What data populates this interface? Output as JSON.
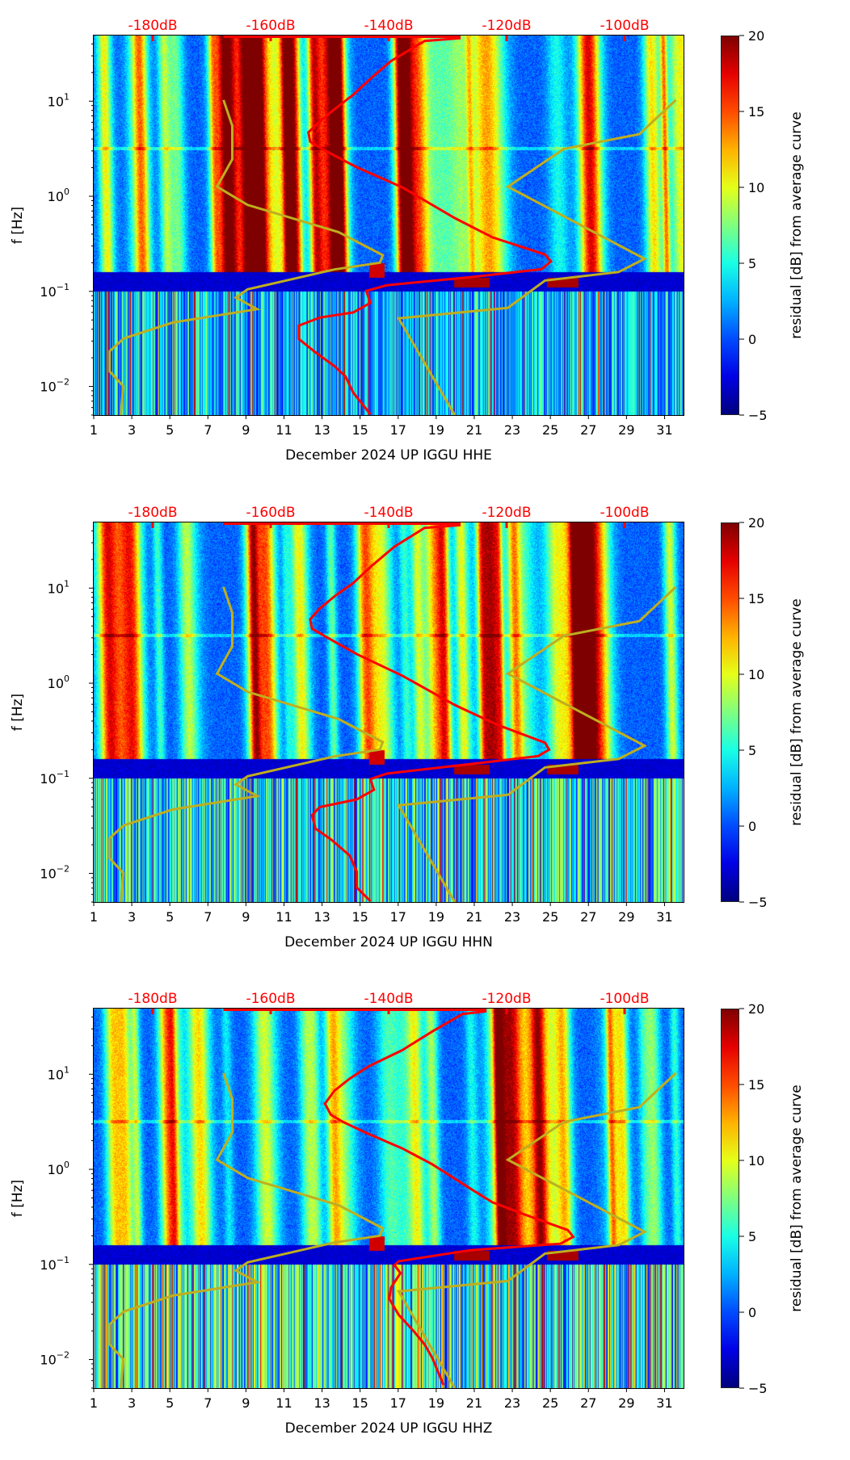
{
  "figure": {
    "panels": [
      {
        "id": "hhe",
        "xlabel": "December 2024 UP IGGU  HHE"
      },
      {
        "id": "hhn",
        "xlabel": "December 2024 UP IGGU  HHN"
      },
      {
        "id": "hhz",
        "xlabel": "December 2024 UP IGGU  HHZ"
      }
    ],
    "ylabel": "f [Hz]",
    "colorbar_label": "residual [dB] from average curve",
    "colorbar_ticks": [
      "20",
      "15",
      "10",
      "5",
      "0",
      "−5"
    ],
    "x_tick_labels": [
      "1",
      "3",
      "5",
      "7",
      "9",
      "11",
      "13",
      "15",
      "17",
      "19",
      "21",
      "23",
      "25",
      "27",
      "29",
      "31"
    ],
    "y_tick_labels": [
      {
        "base": "10",
        "exp": "1"
      },
      {
        "base": "10",
        "exp": "0"
      },
      {
        "base": "10",
        "exp": "−1"
      },
      {
        "base": "10",
        "exp": "−2"
      }
    ],
    "top_tick_labels": [
      "-180dB",
      "-160dB",
      "-140dB",
      "-120dB",
      "-100dB"
    ]
  },
  "chart_data": [
    {
      "type": "heatmap",
      "title": "",
      "xlabel": "December 2024 UP IGGU  HHE",
      "ylabel": "f [Hz]",
      "x_range": [
        1,
        32
      ],
      "y_range": [
        0.005,
        49
      ],
      "y_scale": "log",
      "top_axis": {
        "label_unit": "dB",
        "range": [
          -190,
          -90
        ],
        "ticks": [
          -180,
          -160,
          -140,
          -120,
          -100
        ]
      },
      "colorbar": {
        "label": "residual [dB] from average curve",
        "range": [
          -5,
          20
        ],
        "ticks": [
          -5,
          0,
          5,
          10,
          15,
          20
        ],
        "colormap": "jet"
      },
      "series": [
        {
          "name": "PSD mode curve (red)",
          "color": "#ff0000",
          "axis": "top-dB",
          "points": [
            [
              -127.8,
              45.9
            ],
            [
              -133.9,
              43
            ],
            [
              -139.6,
              26.4
            ],
            [
              -142.8,
              17.9
            ],
            [
              -146.0,
              11.7
            ],
            [
              -149.2,
              8.2
            ],
            [
              -151.7,
              6.1
            ],
            [
              -153.6,
              4.7
            ],
            [
              -153.3,
              3.75
            ],
            [
              -151.1,
              3.09
            ],
            [
              -145.4,
              2.02
            ],
            [
              -137.7,
              1.24
            ],
            [
              -128.8,
              0.59
            ],
            [
              -122.4,
              0.37
            ],
            [
              -113.5,
              0.244
            ],
            [
              -112.5,
              0.207
            ],
            [
              -114.1,
              0.171
            ],
            [
              -126.2,
              0.141
            ],
            [
              -140.3,
              0.116
            ],
            [
              -143.8,
              0.101
            ],
            [
              -143.1,
              0.0757
            ],
            [
              -146.0,
              0.06
            ],
            [
              -151.7,
              0.053
            ],
            [
              -155.2,
              0.0436
            ],
            [
              -155.2,
              0.0315
            ],
            [
              -152.4,
              0.0228
            ],
            [
              -149.2,
              0.0164
            ],
            [
              -147.3,
              0.0127
            ],
            [
              -146.0,
              0.0086
            ],
            [
              -143.1,
              0.0051
            ]
          ]
        }
      ]
    },
    {
      "type": "heatmap",
      "title": "",
      "xlabel": "December 2024 UP IGGU  HHN",
      "ylabel": "f [Hz]",
      "x_range": [
        1,
        32
      ],
      "y_range": [
        0.005,
        49
      ],
      "y_scale": "log",
      "top_axis": {
        "label_unit": "dB",
        "range": [
          -190,
          -90
        ],
        "ticks": [
          -180,
          -160,
          -140,
          -120,
          -100
        ]
      },
      "colorbar": {
        "label": "residual [dB] from average curve",
        "range": [
          -5,
          20
        ],
        "ticks": [
          -5,
          0,
          5,
          10,
          15,
          20
        ],
        "colormap": "jet"
      },
      "series": [
        {
          "name": "PSD mode curve (red)",
          "color": "#ff0000",
          "axis": "top-dB",
          "points": [
            [
              -127.8,
              45.9
            ],
            [
              -133.9,
              43
            ],
            [
              -139.0,
              27.3
            ],
            [
              -142.8,
              17.3
            ],
            [
              -146.0,
              11.3
            ],
            [
              -148.9,
              8.45
            ],
            [
              -151.7,
              6.1
            ],
            [
              -153.3,
              4.7
            ],
            [
              -153.0,
              3.75
            ],
            [
              -151.1,
              3.19
            ],
            [
              -145.4,
              2.02
            ],
            [
              -137.7,
              1.2
            ],
            [
              -128.8,
              0.59
            ],
            [
              -121.8,
              0.37
            ],
            [
              -113.5,
              0.237
            ],
            [
              -112.8,
              0.2
            ],
            [
              -114.7,
              0.171
            ],
            [
              -126.2,
              0.141
            ],
            [
              -140.3,
              0.112
            ],
            [
              -143.1,
              0.098
            ],
            [
              -142.5,
              0.0757
            ],
            [
              -145.4,
              0.06
            ],
            [
              -151.7,
              0.0497
            ],
            [
              -153.0,
              0.0408
            ],
            [
              -152.4,
              0.0295
            ],
            [
              -149.8,
              0.0228
            ],
            [
              -146.6,
              0.0154
            ],
            [
              -145.4,
              0.0104
            ],
            [
              -145.4,
              0.0071
            ],
            [
              -143.1,
              0.0051
            ]
          ]
        }
      ]
    },
    {
      "type": "heatmap",
      "title": "",
      "xlabel": "December 2024 UP IGGU  HHZ",
      "ylabel": "f [Hz]",
      "x_range": [
        1,
        32
      ],
      "y_range": [
        0.005,
        49
      ],
      "y_scale": "log",
      "top_axis": {
        "label_unit": "dB",
        "range": [
          -190,
          -90
        ],
        "ticks": [
          -180,
          -160,
          -140,
          -120,
          -100
        ]
      },
      "colorbar": {
        "label": "residual [dB] from average curve",
        "range": [
          -5,
          20
        ],
        "ticks": [
          -5,
          0,
          5,
          10,
          15,
          20
        ],
        "colormap": "jet"
      },
      "series": [
        {
          "name": "PSD mode curve (red)",
          "color": "#ff0000",
          "axis": "top-dB",
          "points": [
            [
              -123.4,
              45.9
            ],
            [
              -127.5,
              43
            ],
            [
              -132.6,
              28.2
            ],
            [
              -137.7,
              17.9
            ],
            [
              -143.4,
              12.1
            ],
            [
              -146.6,
              9.0
            ],
            [
              -149.2,
              6.7
            ],
            [
              -150.8,
              4.9
            ],
            [
              -149.8,
              3.75
            ],
            [
              -147.9,
              3.19
            ],
            [
              -144.1,
              2.46
            ],
            [
              -137.7,
              1.66
            ],
            [
              -132.6,
              1.13
            ],
            [
              -126.2,
              0.63
            ],
            [
              -122.4,
              0.45
            ],
            [
              -116.7,
              0.33
            ],
            [
              -109.6,
              0.229
            ],
            [
              -108.7,
              0.195
            ],
            [
              -110.9,
              0.165
            ],
            [
              -126.2,
              0.141
            ],
            [
              -138.3,
              0.108
            ],
            [
              -139.0,
              0.098
            ],
            [
              -138.0,
              0.081
            ],
            [
              -139.6,
              0.057
            ],
            [
              -139.9,
              0.0436
            ],
            [
              -138.3,
              0.0295
            ],
            [
              -135.8,
              0.02
            ],
            [
              -133.9,
              0.0144
            ],
            [
              -132.6,
              0.0104
            ],
            [
              -130.7,
              0.0054
            ]
          ]
        }
      ]
    }
  ],
  "noise_models": {
    "color": "#bfae1f",
    "nlnm": {
      "name": "NLNM (low noise model)",
      "points": [
        [
          -168.0,
          10.3
        ],
        [
          -166.5,
          5.5
        ],
        [
          -166.5,
          2.45
        ],
        [
          -169.1,
          1.26
        ],
        [
          -163.9,
          0.81
        ],
        [
          -148.5,
          0.42
        ],
        [
          -141.0,
          0.24
        ],
        [
          -141.5,
          0.2
        ],
        [
          -149.2,
          0.17
        ],
        [
          -163.9,
          0.105
        ],
        [
          -165.9,
          0.086
        ],
        [
          -162.3,
          0.065
        ],
        [
          -176.6,
          0.047
        ],
        [
          -184.9,
          0.032
        ],
        [
          -187.3,
          0.0235
        ],
        [
          -187.3,
          0.0144
        ],
        [
          -185.0,
          0.0101
        ],
        [
          -185.4,
          0.005
        ]
      ]
    },
    "nhnm": {
      "name": "NHNM (high noise model)",
      "points": [
        [
          -91.3,
          10.3
        ],
        [
          -97.5,
          4.5
        ],
        [
          -110.3,
          3.15
        ],
        [
          -119.8,
          1.26
        ],
        [
          -96.6,
          0.22
        ],
        [
          -101.0,
          0.16
        ],
        [
          -113.5,
          0.13
        ],
        [
          -119.8,
          0.067
        ],
        [
          -138.3,
          0.052
        ],
        [
          -128.8,
          0.005
        ]
      ]
    }
  },
  "colors": {
    "curve": "#ff0000",
    "noise_model": "#bfae1f",
    "top_label": "#ff0000"
  }
}
